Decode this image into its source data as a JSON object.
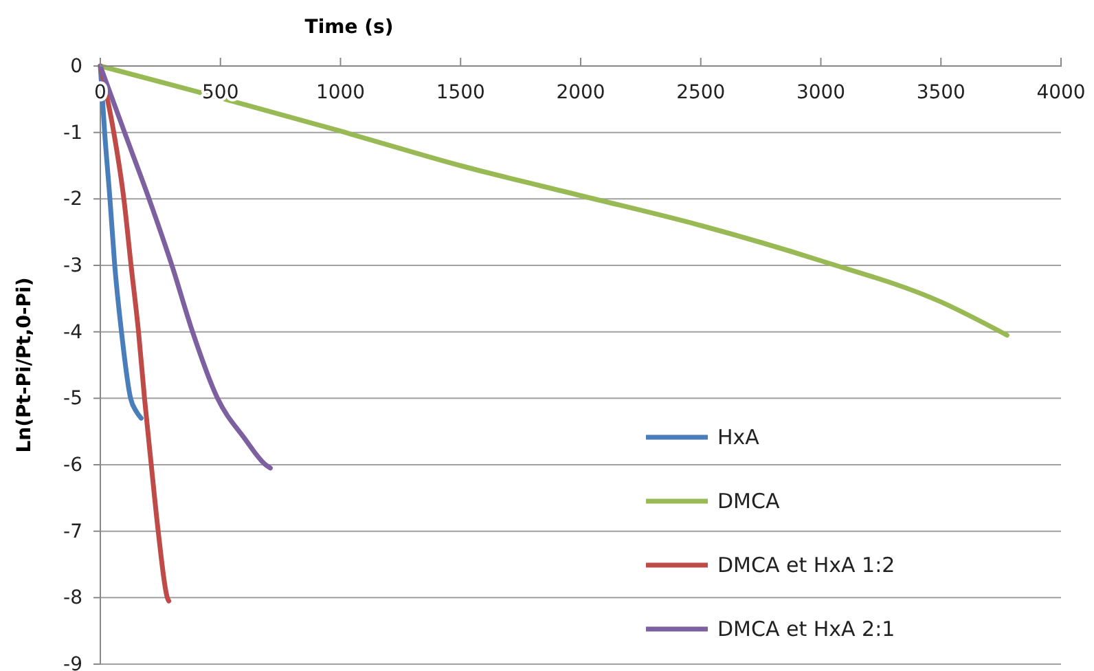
{
  "chart_data": {
    "type": "line",
    "xlabel": "Time (s)",
    "ylabel": "Ln(Pt-Pi/Pt,0-Pi)",
    "xlim": [
      0,
      4000
    ],
    "ylim": [
      -9,
      0
    ],
    "xticks": [
      0,
      500,
      1000,
      1500,
      2000,
      2500,
      3000,
      3500,
      4000
    ],
    "yticks": [
      -9,
      -8,
      -7,
      -6,
      -5,
      -4,
      -3,
      -2,
      -1,
      0
    ],
    "grid": "y",
    "legend": "bottom right",
    "line_style": "solid",
    "marker": "none",
    "series": [
      {
        "name": "HxA",
        "color": "#4a7ebb",
        "x": [
          0,
          18,
          40,
          60,
          88,
          126,
          150,
          170
        ],
        "values": [
          0,
          -1,
          -2,
          -3,
          -4,
          -5,
          -5.2,
          -5.3
        ]
      },
      {
        "name": "DMCA",
        "color": "#98b954",
        "x": [
          0,
          500,
          1000,
          1500,
          2000,
          2500,
          3000,
          3500,
          3775
        ],
        "values": [
          0,
          -0.48,
          -0.98,
          -1.5,
          -1.95,
          -2.4,
          -2.93,
          -3.55,
          -4.05
        ]
      },
      {
        "name": "DMCA et HxA 1:2",
        "color": "#be4b48",
        "x": [
          0,
          56,
          98,
          128,
          159,
          184,
          212,
          241,
          279,
          285
        ],
        "values": [
          0,
          -1,
          -2,
          -3,
          -4,
          -5,
          -6,
          -7,
          -8,
          -8.05
        ]
      },
      {
        "name": "DMCA et HxA 2:1",
        "color": "#7d60a0",
        "x": [
          0,
          101,
          203,
          298,
          384,
          488,
          600,
          688,
          708
        ],
        "values": [
          0,
          -1,
          -2,
          -3,
          -4,
          -5,
          -5.6,
          -6,
          -6.05
        ]
      }
    ]
  }
}
